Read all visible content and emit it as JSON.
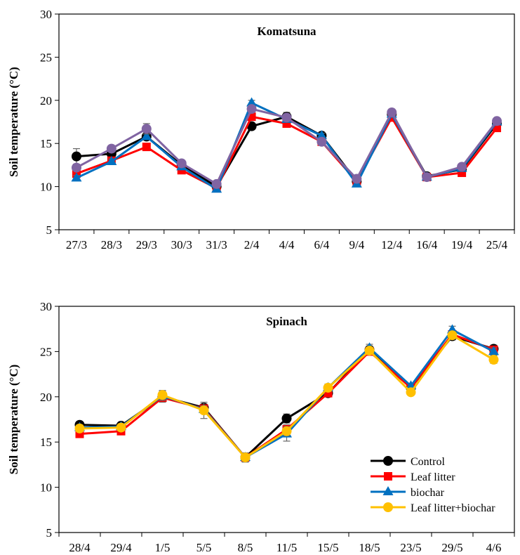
{
  "chart_data": [
    {
      "type": "line",
      "title": "Komatsuna",
      "ylabel": "Soil temperature (°C)",
      "xlabel": "",
      "ylim": [
        5,
        30
      ],
      "yticks": [
        5,
        10,
        15,
        20,
        25,
        30
      ],
      "grid": false,
      "error_bars": true,
      "categories": [
        "27/3",
        "28/3",
        "29/3",
        "30/3",
        "31/3",
        "2/4",
        "4/4",
        "6/4",
        "9/4",
        "12/4",
        "16/4",
        "19/4",
        "25/4"
      ],
      "series": [
        {
          "name": "Control",
          "color": "#000000",
          "marker": "circle",
          "values": [
            13.5,
            13.8,
            15.8,
            12.5,
            10.0,
            17.0,
            18.1,
            15.9,
            10.6,
            18.4,
            11.2,
            12.0,
            17.3
          ],
          "errors": [
            0.9,
            0.3,
            0.3,
            0.3,
            0.2,
            0.3,
            0.5,
            0.3,
            0.2,
            0.2,
            0.2,
            0.2,
            0.2
          ]
        },
        {
          "name": "Leaf litter",
          "color": "#ff0000",
          "marker": "square",
          "values": [
            11.5,
            13.0,
            14.6,
            11.9,
            9.8,
            18.1,
            17.3,
            15.2,
            10.6,
            18.0,
            11.1,
            11.6,
            16.8
          ],
          "errors": [
            0.3,
            0.3,
            0.4,
            0.3,
            0.2,
            0.3,
            0.3,
            0.3,
            0.2,
            0.2,
            0.2,
            0.2,
            0.2
          ]
        },
        {
          "name": "biochar",
          "color": "#0070c0",
          "marker": "triangle",
          "values": [
            11.0,
            12.9,
            15.8,
            12.3,
            9.7,
            19.7,
            17.8,
            15.9,
            10.3,
            18.4,
            11.1,
            12.1,
            17.5
          ],
          "errors": [
            0.3,
            0.3,
            0.3,
            0.3,
            0.2,
            0.3,
            0.3,
            0.3,
            0.2,
            0.2,
            0.2,
            0.2,
            0.2
          ]
        },
        {
          "name": "Leaf litter+biochar",
          "color": "#8064a2",
          "marker": "circle",
          "values": [
            12.2,
            14.4,
            16.7,
            12.7,
            10.3,
            19.0,
            18.0,
            15.2,
            10.9,
            18.6,
            11.1,
            12.3,
            17.6
          ],
          "errors": [
            0.3,
            0.3,
            0.6,
            0.3,
            0.2,
            0.3,
            0.3,
            0.3,
            0.2,
            0.2,
            0.2,
            0.2,
            0.2
          ]
        }
      ]
    },
    {
      "type": "line",
      "title": "Spinach",
      "ylabel": "Soil temperature (°C)",
      "xlabel": "",
      "ylim": [
        5,
        30
      ],
      "yticks": [
        5,
        10,
        15,
        20,
        25,
        30
      ],
      "grid": false,
      "error_bars": true,
      "legend": "bottom-right",
      "categories": [
        "28/4",
        "29/4",
        "1/5",
        "5/5",
        "8/5",
        "11/5",
        "15/5",
        "18/5",
        "23/5",
        "29/5",
        "4/6"
      ],
      "series": [
        {
          "name": "Control",
          "color": "#000000",
          "marker": "circle",
          "values": [
            16.9,
            16.8,
            20.0,
            18.8,
            13.3,
            17.6,
            20.4,
            25.2,
            21.0,
            26.7,
            25.3
          ],
          "errors": [
            0.3,
            0.3,
            0.5,
            0.4,
            0.5,
            0.5,
            0.4,
            0.4,
            0.3,
            0.4,
            0.4
          ]
        },
        {
          "name": "Leaf litter",
          "color": "#ff0000",
          "marker": "square",
          "values": [
            15.9,
            16.2,
            19.9,
            18.7,
            13.3,
            16.4,
            20.4,
            25.0,
            21.0,
            26.9,
            25.2
          ],
          "errors": [
            0.3,
            0.3,
            0.5,
            0.4,
            0.5,
            0.5,
            0.4,
            0.4,
            0.3,
            0.4,
            0.4
          ]
        },
        {
          "name": "biochar",
          "color": "#0070c0",
          "marker": "triangle",
          "values": [
            16.6,
            16.7,
            20.1,
            18.6,
            13.3,
            15.9,
            21.0,
            25.4,
            21.2,
            27.4,
            25.0
          ],
          "errors": [
            0.3,
            0.3,
            0.5,
            0.4,
            0.5,
            0.8,
            0.4,
            0.4,
            0.3,
            0.4,
            0.4
          ]
        },
        {
          "name": "Leaf litter+biochar",
          "color": "#ffc000",
          "marker": "circle",
          "values": [
            16.5,
            16.6,
            20.2,
            18.5,
            13.3,
            16.2,
            21.0,
            25.1,
            20.5,
            26.8,
            24.1
          ],
          "errors": [
            0.3,
            0.3,
            0.5,
            0.9,
            0.5,
            0.5,
            0.4,
            0.4,
            0.3,
            0.4,
            0.4
          ]
        }
      ]
    }
  ]
}
